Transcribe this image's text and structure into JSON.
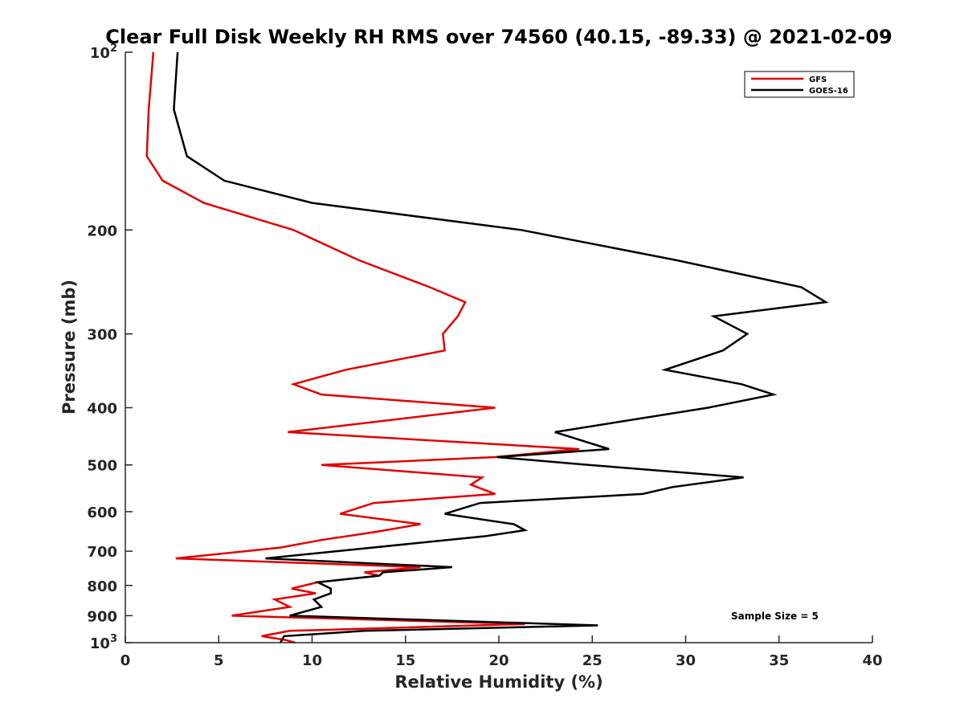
{
  "chart_data": {
    "type": "line",
    "title": "Clear Full Disk Weekly RH RMS over 74560 (40.15, -89.33) @ 2021-02-09",
    "xlabel": "Relative Humidity (%)",
    "ylabel": "Pressure (mb)",
    "xlim": [
      0,
      40
    ],
    "ylim": [
      100,
      1000
    ],
    "y_scale": "log",
    "y_reversed": true,
    "grid": false,
    "legend_position": "top-right",
    "annotation": "Sample Size = 5",
    "x_ticks": [
      {
        "value": 0,
        "label": "0"
      },
      {
        "value": 5,
        "label": "5"
      },
      {
        "value": 10,
        "label": "10"
      },
      {
        "value": 15,
        "label": "15"
      },
      {
        "value": 20,
        "label": "20"
      },
      {
        "value": 25,
        "label": "25"
      },
      {
        "value": 30,
        "label": "30"
      },
      {
        "value": 35,
        "label": "35"
      },
      {
        "value": 40,
        "label": "40"
      }
    ],
    "y_ticks": [
      {
        "value": 100,
        "base": "10",
        "exp": "2"
      },
      {
        "value": 200,
        "label": "200"
      },
      {
        "value": 300,
        "label": "300"
      },
      {
        "value": 400,
        "label": "400"
      },
      {
        "value": 500,
        "label": "500"
      },
      {
        "value": 600,
        "label": "600"
      },
      {
        "value": 700,
        "label": "700"
      },
      {
        "value": 800,
        "label": "800"
      },
      {
        "value": 900,
        "label": "900"
      },
      {
        "value": 1000,
        "base": "10",
        "exp": "3"
      }
    ],
    "series": [
      {
        "name": "GFS",
        "color": "#e00000",
        "points": [
          [
            1.5,
            100
          ],
          [
            1.25,
            125
          ],
          [
            1.15,
            150
          ],
          [
            2.0,
            165
          ],
          [
            4.2,
            180
          ],
          [
            9.0,
            200
          ],
          [
            12.5,
            225
          ],
          [
            16.3,
            250
          ],
          [
            18.2,
            265
          ],
          [
            17.8,
            280
          ],
          [
            17.0,
            300
          ],
          [
            17.1,
            320
          ],
          [
            11.8,
            345
          ],
          [
            9.0,
            365
          ],
          [
            10.5,
            380
          ],
          [
            19.8,
            400
          ],
          [
            8.7,
            440
          ],
          [
            24.3,
            470
          ],
          [
            19.8,
            485
          ],
          [
            10.5,
            500
          ],
          [
            19.1,
            525
          ],
          [
            18.5,
            540
          ],
          [
            19.8,
            560
          ],
          [
            13.3,
            580
          ],
          [
            11.5,
            605
          ],
          [
            15.8,
            630
          ],
          [
            13.3,
            650
          ],
          [
            10.5,
            670
          ],
          [
            8.3,
            690
          ],
          [
            2.7,
            720
          ],
          [
            15.8,
            745
          ],
          [
            12.8,
            760
          ],
          [
            13.6,
            770
          ],
          [
            10.3,
            790
          ],
          [
            8.9,
            810
          ],
          [
            10.2,
            825
          ],
          [
            8.0,
            845
          ],
          [
            8.8,
            870
          ],
          [
            5.7,
            900
          ],
          [
            21.4,
            930
          ],
          [
            8.8,
            955
          ],
          [
            7.3,
            975
          ],
          [
            8.6,
            990
          ],
          [
            9.1,
            1000
          ]
        ]
      },
      {
        "name": "GOES-16",
        "color": "#000000",
        "points": [
          [
            2.8,
            100
          ],
          [
            2.6,
            125
          ],
          [
            3.3,
            150
          ],
          [
            5.3,
            165
          ],
          [
            10.0,
            180
          ],
          [
            21.2,
            200
          ],
          [
            29.5,
            225
          ],
          [
            36.2,
            250
          ],
          [
            37.5,
            265
          ],
          [
            31.5,
            280
          ],
          [
            33.3,
            300
          ],
          [
            32.0,
            320
          ],
          [
            28.9,
            345
          ],
          [
            33.0,
            365
          ],
          [
            34.7,
            380
          ],
          [
            31.2,
            400
          ],
          [
            23.0,
            440
          ],
          [
            25.9,
            470
          ],
          [
            19.9,
            485
          ],
          [
            24.8,
            500
          ],
          [
            33.1,
            525
          ],
          [
            29.3,
            545
          ],
          [
            27.7,
            560
          ],
          [
            19.0,
            580
          ],
          [
            17.1,
            605
          ],
          [
            20.8,
            630
          ],
          [
            21.4,
            645
          ],
          [
            19.3,
            660
          ],
          [
            7.5,
            720
          ],
          [
            17.5,
            745
          ],
          [
            13.8,
            760
          ],
          [
            13.6,
            770
          ],
          [
            10.3,
            790
          ],
          [
            11.0,
            810
          ],
          [
            11.0,
            825
          ],
          [
            10.1,
            845
          ],
          [
            10.5,
            870
          ],
          [
            8.8,
            900
          ],
          [
            25.3,
            935
          ],
          [
            12.8,
            955
          ],
          [
            8.5,
            975
          ],
          [
            8.3,
            1000
          ]
        ]
      }
    ]
  }
}
